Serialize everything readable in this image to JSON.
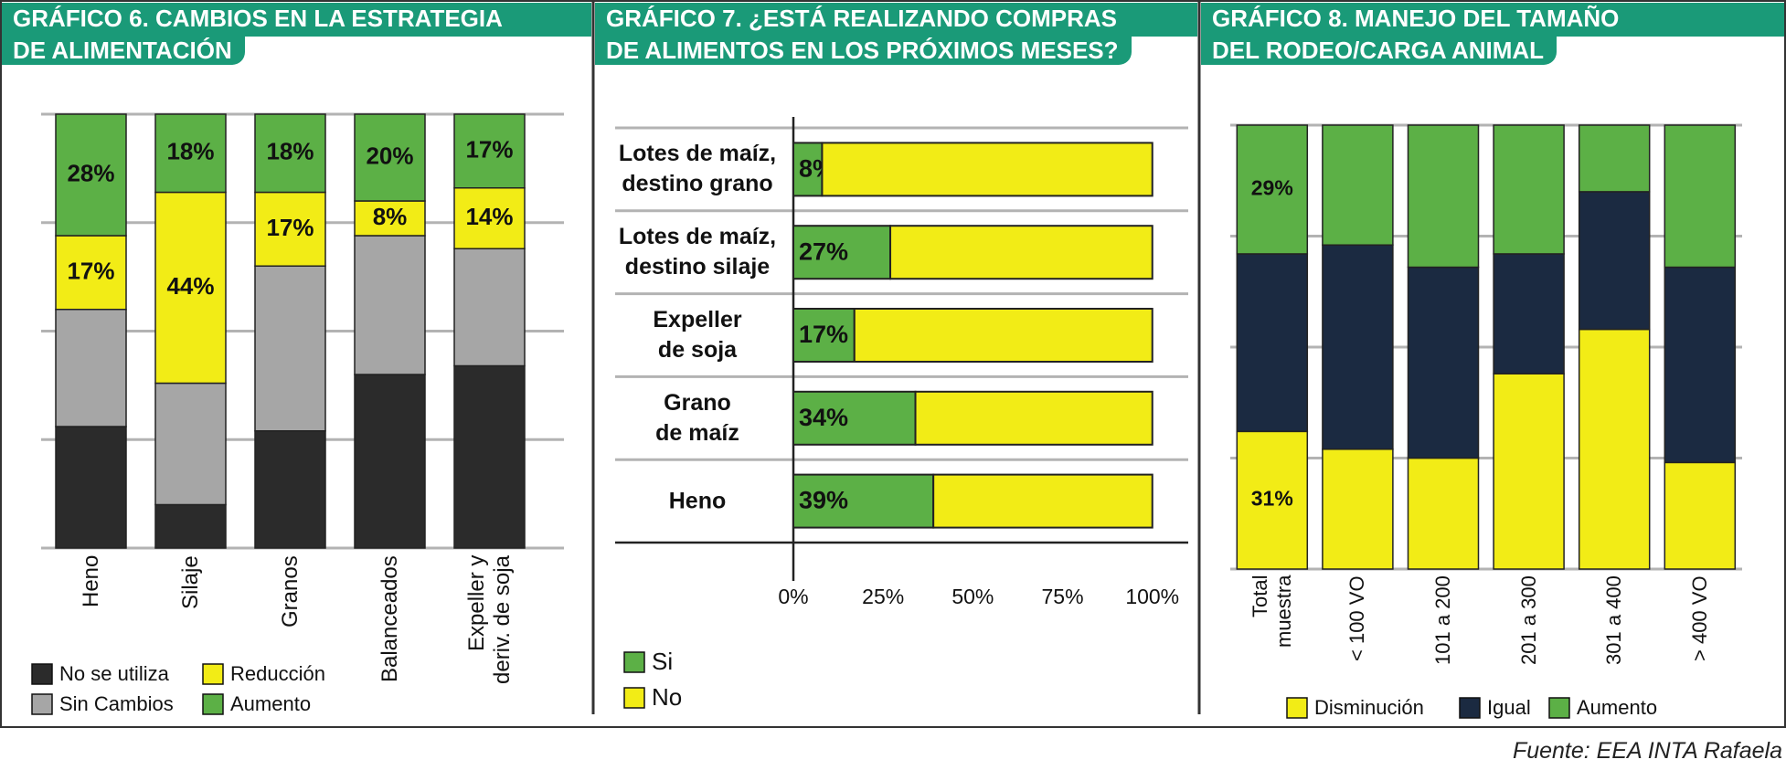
{
  "chart_data": [
    {
      "type": "stacked_bar",
      "title": "GRÁFICO 6. CAMBIOS EN LA ESTRATEGIA\nDE ALIMENTACIÓN",
      "categories": [
        "Heno",
        "Silaje",
        "Granos",
        "Balanceados",
        "Expeller y\nderiv. de soja"
      ],
      "series": [
        {
          "name": "No se utiliza",
          "color": "#2b2b2b",
          "values": [
            28,
            10,
            27,
            40,
            42
          ]
        },
        {
          "name": "Sin Cambios",
          "color": "#a6a6a6",
          "values": [
            27,
            28,
            38,
            32,
            27
          ]
        },
        {
          "name": "Reducción",
          "color": "#f2ec16",
          "values": [
            17,
            44,
            17,
            8,
            14
          ],
          "value_labels": [
            "17%",
            "44%",
            "17%",
            "8%",
            "14%"
          ]
        },
        {
          "name": "Aumento",
          "color": "#5cb046",
          "values": [
            28,
            18,
            18,
            20,
            17
          ],
          "value_labels": [
            "28%",
            "18%",
            "18%",
            "20%",
            "17%"
          ]
        }
      ],
      "ylim": [
        0,
        100
      ],
      "yticks": [
        0,
        25,
        50,
        75,
        100
      ],
      "grid": true,
      "legend": "bottom"
    },
    {
      "type": "stacked_barh",
      "title": "GRÁFICO 7. ¿ESTÁ REALIZANDO COMPRAS\nDE ALIMENTOS EN LOS PRÓXIMOS MESES?",
      "categories": [
        "Lotes de maíz,\ndestino grano",
        "Lotes de maíz,\ndestino silaje",
        "Expeller\nde soja",
        "Grano\nde maíz",
        "Heno"
      ],
      "series": [
        {
          "name": "Si",
          "color": "#5cb046",
          "values": [
            8,
            27,
            17,
            34,
            39
          ],
          "value_labels": [
            "8%",
            "27%",
            "17%",
            "34%",
            "39%"
          ]
        },
        {
          "name": "No",
          "color": "#f2ec16",
          "values": [
            92,
            73,
            83,
            66,
            61
          ]
        }
      ],
      "xlim": [
        0,
        110
      ],
      "xticks": [
        {
          "value": 0,
          "label": "0%"
        },
        {
          "value": 25,
          "label": "25%"
        },
        {
          "value": 50,
          "label": "50%"
        },
        {
          "value": 75,
          "label": "75%"
        },
        {
          "value": 100,
          "label": "100%"
        }
      ],
      "legend": "bottom"
    },
    {
      "type": "stacked_bar",
      "title": "GRÁFICO 8. MANEJO DEL TAMAÑO\nDEL RODEO/CARGA ANIMAL",
      "categories": [
        "Total\nmuestra",
        "< 100 VO",
        "101 a 200",
        "201 a 300",
        "301 a 400",
        "> 400 VO"
      ],
      "series": [
        {
          "name": "Disminución",
          "color": "#f2ec16",
          "values": [
            31,
            27,
            25,
            44,
            54,
            24
          ],
          "value_labels": [
            "31%",
            null,
            null,
            null,
            null,
            null
          ]
        },
        {
          "name": "Igual",
          "color": "#1b2a41",
          "values": [
            40,
            46,
            43,
            27,
            31,
            44
          ]
        },
        {
          "name": "Aumento",
          "color": "#5cb046",
          "values": [
            29,
            27,
            32,
            29,
            15,
            32
          ],
          "value_labels": [
            "29%",
            null,
            null,
            null,
            null,
            null
          ]
        }
      ],
      "ylim": [
        0,
        100
      ],
      "yticks": [
        0,
        25,
        50,
        75,
        100
      ],
      "grid": true,
      "legend": "bottom"
    }
  ],
  "source": "Fuente: EEA INTA Rafaela"
}
